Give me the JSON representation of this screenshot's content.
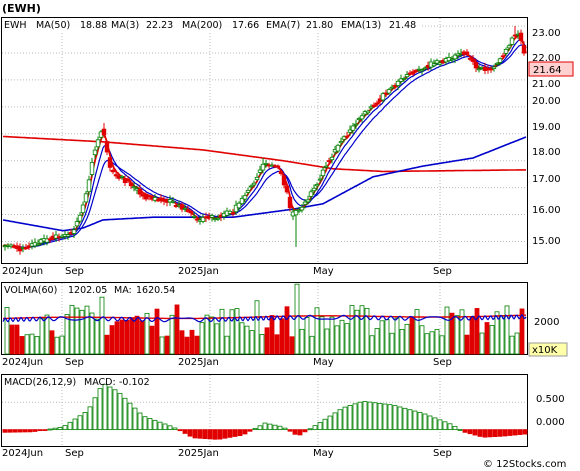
{
  "title": "(EWH)",
  "watermark": "© 12Stocks.com",
  "panels": {
    "price": {
      "symbol": "EWH",
      "legend": [
        {
          "text": "MA(50)",
          "value": "18.88"
        },
        {
          "text": "MA(3)",
          "value": "22.23"
        },
        {
          "text": "MA(200)",
          "value": "17.66"
        },
        {
          "text": "EMA(7)",
          "value": "21.80"
        },
        {
          "text": "EMA(13)",
          "value": "21.48"
        }
      ],
      "last_price_label": "21.64",
      "y_ticks": [
        "23.00",
        "22.00",
        "21.00",
        "20.00",
        "19.00",
        "18.00",
        "17.00",
        "16.00",
        "15.00"
      ]
    },
    "volume": {
      "legend": [
        {
          "text": "VOLMA(60)",
          "value": "1202.05"
        },
        {
          "text": "MA:",
          "value": "1620.54"
        }
      ],
      "y_ticks": [
        "2000"
      ],
      "unit_label": "x10K"
    },
    "macd": {
      "legend": [
        {
          "text": "MACD(26,12,9)",
          "value": ""
        },
        {
          "text": "MACD:",
          "value": "-0.102"
        }
      ],
      "y_ticks": [
        "0.500",
        "0.000"
      ]
    }
  },
  "x_labels": [
    "2024Jun",
    "Sep",
    "2025Jan",
    "May",
    "Sep"
  ],
  "colors": {
    "up": "#008000",
    "down": "#e00000",
    "ma_blue": "#0000cc",
    "ma_red": "#e00000",
    "grid": "#bbbbbb",
    "label_bg": "#ffd0d0"
  },
  "chart_data": {
    "type": "candlestick",
    "x_range": [
      "2024Jun",
      "2025Oct"
    ],
    "ylim": [
      14.2,
      23.3
    ],
    "grid": true,
    "price_anchors": [
      {
        "t": 0,
        "close": 14.9
      },
      {
        "t": 20,
        "close": 14.7
      },
      {
        "t": 45,
        "close": 15.1
      },
      {
        "t": 70,
        "close": 15.3
      },
      {
        "t": 82,
        "close": 16.5
      },
      {
        "t": 90,
        "close": 18.2
      },
      {
        "t": 100,
        "close": 19.2
      },
      {
        "t": 108,
        "close": 17.6
      },
      {
        "t": 125,
        "close": 17.2
      },
      {
        "t": 145,
        "close": 16.6
      },
      {
        "t": 165,
        "close": 16.5
      },
      {
        "t": 182,
        "close": 16.2
      },
      {
        "t": 195,
        "close": 15.8
      },
      {
        "t": 210,
        "close": 15.9
      },
      {
        "t": 230,
        "close": 16.1
      },
      {
        "t": 245,
        "close": 16.9
      },
      {
        "t": 262,
        "close": 17.9
      },
      {
        "t": 275,
        "close": 17.7
      },
      {
        "t": 283,
        "close": 17.0
      },
      {
        "t": 288,
        "close": 16.0
      },
      {
        "t": 298,
        "close": 16.2
      },
      {
        "t": 312,
        "close": 17.0
      },
      {
        "t": 325,
        "close": 18.0
      },
      {
        "t": 340,
        "close": 18.8
      },
      {
        "t": 355,
        "close": 19.5
      },
      {
        "t": 372,
        "close": 20.1
      },
      {
        "t": 390,
        "close": 20.8
      },
      {
        "t": 410,
        "close": 21.3
      },
      {
        "t": 428,
        "close": 21.6
      },
      {
        "t": 448,
        "close": 21.8
      },
      {
        "t": 462,
        "close": 22.0
      },
      {
        "t": 475,
        "close": 21.4
      },
      {
        "t": 488,
        "close": 21.4
      },
      {
        "t": 500,
        "close": 21.9
      },
      {
        "t": 510,
        "close": 22.6
      },
      {
        "t": 516,
        "close": 22.8
      },
      {
        "t": 523,
        "close": 21.64
      }
    ],
    "spikes": [
      {
        "t": 100,
        "high": 19.4
      },
      {
        "t": 261,
        "high": 18.1
      },
      {
        "t": 294,
        "low": 14.8
      },
      {
        "t": 512,
        "high": 23.0
      }
    ],
    "volume": {
      "ylim": [
        0,
        3000
      ],
      "volma60": 1202.05,
      "ma": 1620.54,
      "highlight_bars": [
        {
          "t": 100,
          "value": 2400
        },
        {
          "t": 292,
          "value": 2950
        },
        {
          "t": 253,
          "value": 2250
        }
      ]
    },
    "macd": {
      "ylim": [
        -0.3,
        1.0
      ],
      "last": -0.102,
      "hist_anchors": [
        {
          "t": 0,
          "v": -0.05
        },
        {
          "t": 30,
          "v": -0.04
        },
        {
          "t": 60,
          "v": 0.05
        },
        {
          "t": 85,
          "v": 0.35
        },
        {
          "t": 100,
          "v": 0.85
        },
        {
          "t": 115,
          "v": 0.7
        },
        {
          "t": 140,
          "v": 0.25
        },
        {
          "t": 170,
          "v": 0.05
        },
        {
          "t": 190,
          "v": -0.15
        },
        {
          "t": 215,
          "v": -0.18
        },
        {
          "t": 240,
          "v": -0.1
        },
        {
          "t": 262,
          "v": 0.12
        },
        {
          "t": 280,
          "v": 0.05
        },
        {
          "t": 295,
          "v": -0.12
        },
        {
          "t": 310,
          "v": 0.05
        },
        {
          "t": 340,
          "v": 0.4
        },
        {
          "t": 360,
          "v": 0.52
        },
        {
          "t": 390,
          "v": 0.45
        },
        {
          "t": 420,
          "v": 0.3
        },
        {
          "t": 448,
          "v": 0.1
        },
        {
          "t": 462,
          "v": -0.05
        },
        {
          "t": 480,
          "v": -0.14
        },
        {
          "t": 500,
          "v": -0.12
        },
        {
          "t": 523,
          "v": -0.08
        }
      ]
    },
    "ma200_anchors": [
      {
        "t": 0,
        "v": 18.9
      },
      {
        "t": 100,
        "v": 18.7
      },
      {
        "t": 200,
        "v": 18.4
      },
      {
        "t": 280,
        "v": 18.0
      },
      {
        "t": 330,
        "v": 17.7
      },
      {
        "t": 380,
        "v": 17.6
      },
      {
        "t": 523,
        "v": 17.66
      }
    ],
    "ma50_anchors": [
      {
        "t": 0,
        "v": 15.8
      },
      {
        "t": 60,
        "v": 15.4
      },
      {
        "t": 80,
        "v": 15.5
      },
      {
        "t": 100,
        "v": 15.8
      },
      {
        "t": 150,
        "v": 15.9
      },
      {
        "t": 230,
        "v": 15.9
      },
      {
        "t": 290,
        "v": 16.2
      },
      {
        "t": 320,
        "v": 16.4
      },
      {
        "t": 370,
        "v": 17.4
      },
      {
        "t": 420,
        "v": 17.8
      },
      {
        "t": 470,
        "v": 18.1
      },
      {
        "t": 523,
        "v": 18.88
      }
    ]
  }
}
